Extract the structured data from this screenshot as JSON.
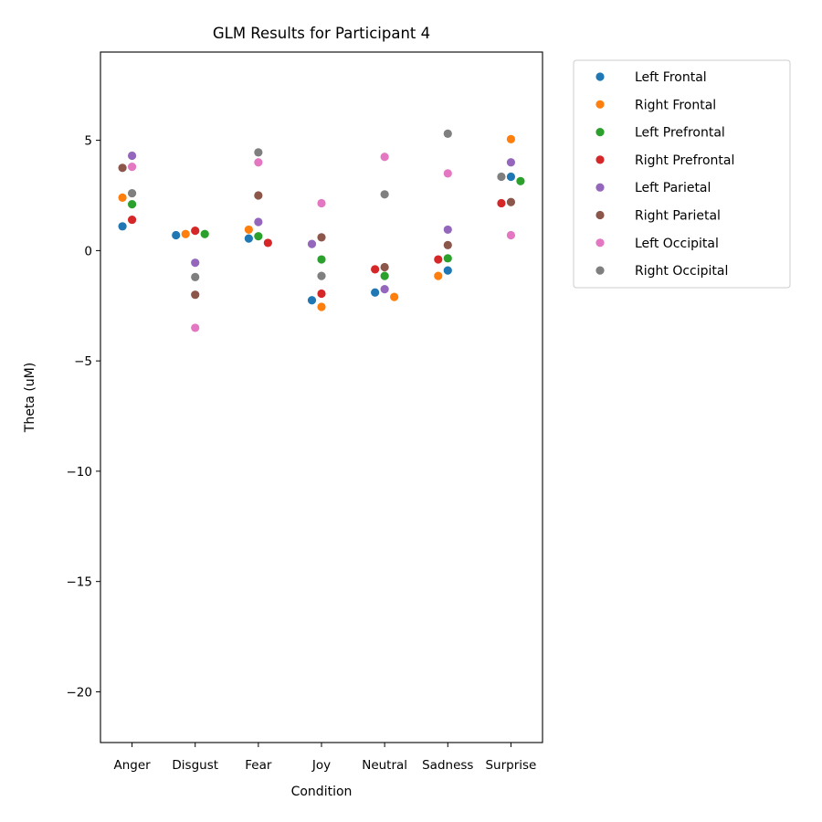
{
  "chart_data": {
    "type": "scatter",
    "title": "GLM Results for Participant 4",
    "xlabel": "Condition",
    "ylabel": "Theta (uM)",
    "categories": [
      "Anger",
      "Disgust",
      "Fear",
      "Joy",
      "Neutral",
      "Sadness",
      "Surprise"
    ],
    "ylim": [
      -22.3,
      9.0
    ],
    "yticks": [
      -20,
      -15,
      -10,
      -5,
      0,
      5
    ],
    "ytick_labels": [
      "−20",
      "−15",
      "−10",
      "−5",
      "0",
      "5"
    ],
    "grid": false,
    "legend_position": "outside-top-right",
    "series": [
      {
        "name": "Left Frontal",
        "color": "#1f77b4",
        "values": [
          1.1,
          0.7,
          0.55,
          -2.25,
          -1.9,
          -0.9,
          3.35
        ]
      },
      {
        "name": "Right Frontal",
        "color": "#ff7f0e",
        "values": [
          2.4,
          0.75,
          0.95,
          -2.55,
          -2.1,
          -1.15,
          5.05
        ]
      },
      {
        "name": "Left Prefrontal",
        "color": "#2ca02c",
        "values": [
          2.1,
          0.75,
          0.65,
          -0.4,
          -1.15,
          -0.35,
          3.15
        ]
      },
      {
        "name": "Right Prefrontal",
        "color": "#d62728",
        "values": [
          1.4,
          0.9,
          0.35,
          -1.95,
          -0.85,
          -0.4,
          2.15
        ]
      },
      {
        "name": "Left Parietal",
        "color": "#9467bd",
        "values": [
          4.3,
          -0.55,
          1.3,
          0.3,
          -1.75,
          0.95,
          4.0
        ]
      },
      {
        "name": "Right Parietal",
        "color": "#8c564b",
        "values": [
          3.75,
          -2.0,
          2.5,
          0.6,
          -0.75,
          0.25,
          2.2
        ]
      },
      {
        "name": "Left Occipital",
        "color": "#e377c2",
        "values": [
          3.8,
          -3.5,
          4.0,
          2.15,
          4.25,
          3.5,
          0.7
        ]
      },
      {
        "name": "Right Occipital",
        "color": "#7f7f7f",
        "values": [
          2.6,
          -1.2,
          4.45,
          -1.15,
          2.55,
          5.3,
          3.35
        ]
      }
    ]
  }
}
